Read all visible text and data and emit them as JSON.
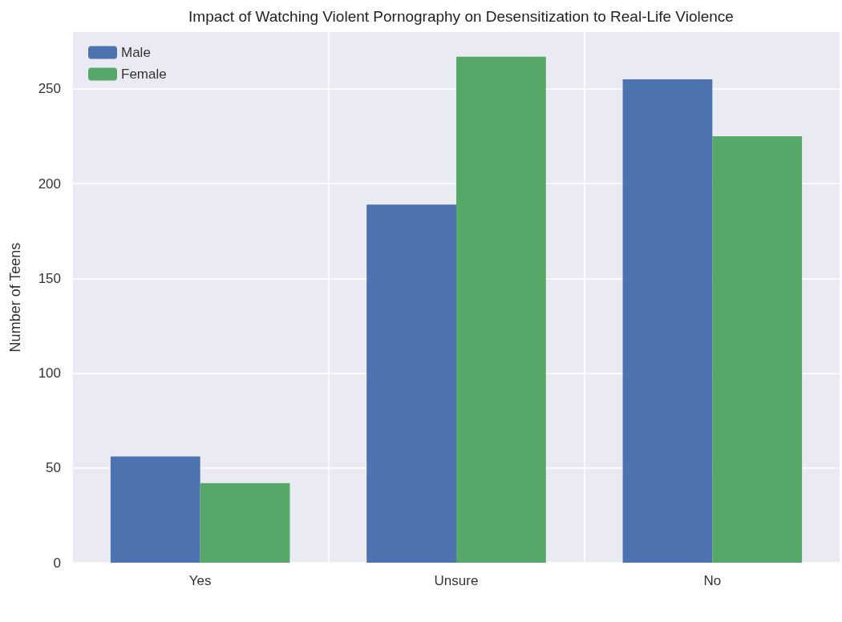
{
  "chart_data": {
    "type": "bar",
    "title": "Impact of Watching Violent Pornography on Desensitization to Real-Life Violence",
    "ylabel": "Number of Teens",
    "categories": [
      "Yes",
      "Unsure",
      "No"
    ],
    "series": [
      {
        "name": "Male",
        "color": "#4c72b0",
        "values": [
          56,
          189,
          255
        ]
      },
      {
        "name": "Female",
        "color": "#55a868",
        "values": [
          42,
          267,
          225
        ]
      }
    ],
    "ylim": [
      0,
      280
    ],
    "yticks": [
      0,
      50,
      100,
      150,
      200,
      250
    ],
    "grid": true,
    "legend": "top left"
  }
}
